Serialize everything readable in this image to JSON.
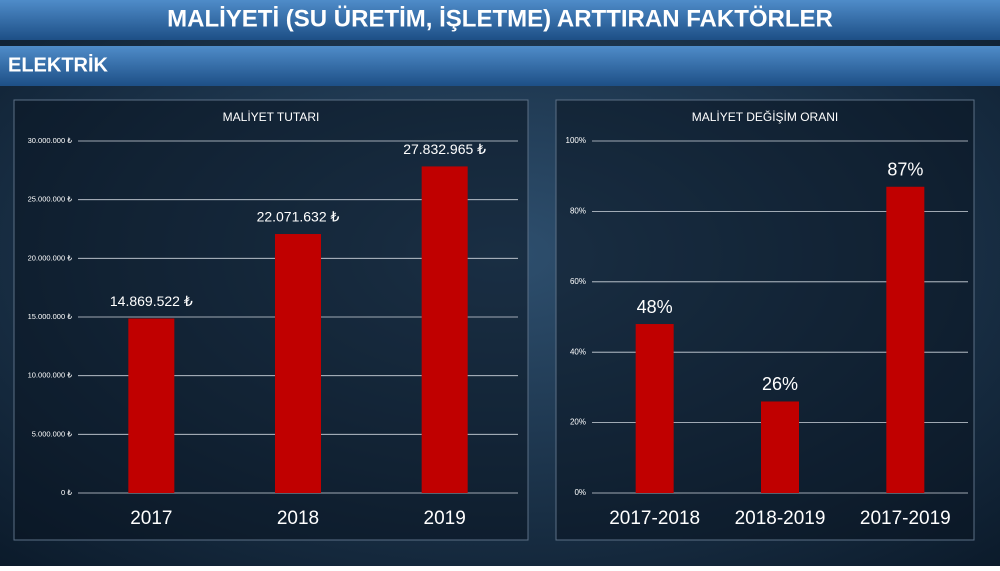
{
  "title": "MALİYETİ (SU ÜRETİM, İŞLETME) ARTTIRAN FAKTÖRLER",
  "section": "ELEKTRİK",
  "chart_data": [
    {
      "type": "bar",
      "title": "MALİYET TUTARI",
      "categories": [
        "2017",
        "2018",
        "2019"
      ],
      "values": [
        14869522,
        22071632,
        27832965
      ],
      "value_labels": [
        "14.869.522 ₺",
        "22.071.632 ₺",
        "27.832.965 ₺"
      ],
      "color": "#c00000",
      "ylim": [
        0,
        30000000
      ],
      "yticks": [
        {
          "value": 0,
          "label": "0 ₺"
        },
        {
          "value": 5000000,
          "label": "5.000.000 ₺"
        },
        {
          "value": 10000000,
          "label": "10.000.000 ₺"
        },
        {
          "value": 15000000,
          "label": "15.000.000 ₺"
        },
        {
          "value": 20000000,
          "label": "20.000.000 ₺"
        },
        {
          "value": 25000000,
          "label": "25.000.000 ₺"
        },
        {
          "value": 30000000,
          "label": "30.000.000 ₺"
        }
      ],
      "grid": true
    },
    {
      "type": "bar",
      "title": "MALİYET DEĞİŞİM ORANI",
      "categories": [
        "2017-2018",
        "2018-2019",
        "2017-2019"
      ],
      "values": [
        48,
        26,
        87
      ],
      "value_labels": [
        "48%",
        "26%",
        "87%"
      ],
      "color": "#c00000",
      "ylim": [
        0,
        100
      ],
      "yticks": [
        {
          "value": 0,
          "label": "0%"
        },
        {
          "value": 20,
          "label": "20%"
        },
        {
          "value": 40,
          "label": "40%"
        },
        {
          "value": 60,
          "label": "60%"
        },
        {
          "value": 80,
          "label": "80%"
        },
        {
          "value": 100,
          "label": "100%"
        }
      ],
      "grid": true
    }
  ]
}
